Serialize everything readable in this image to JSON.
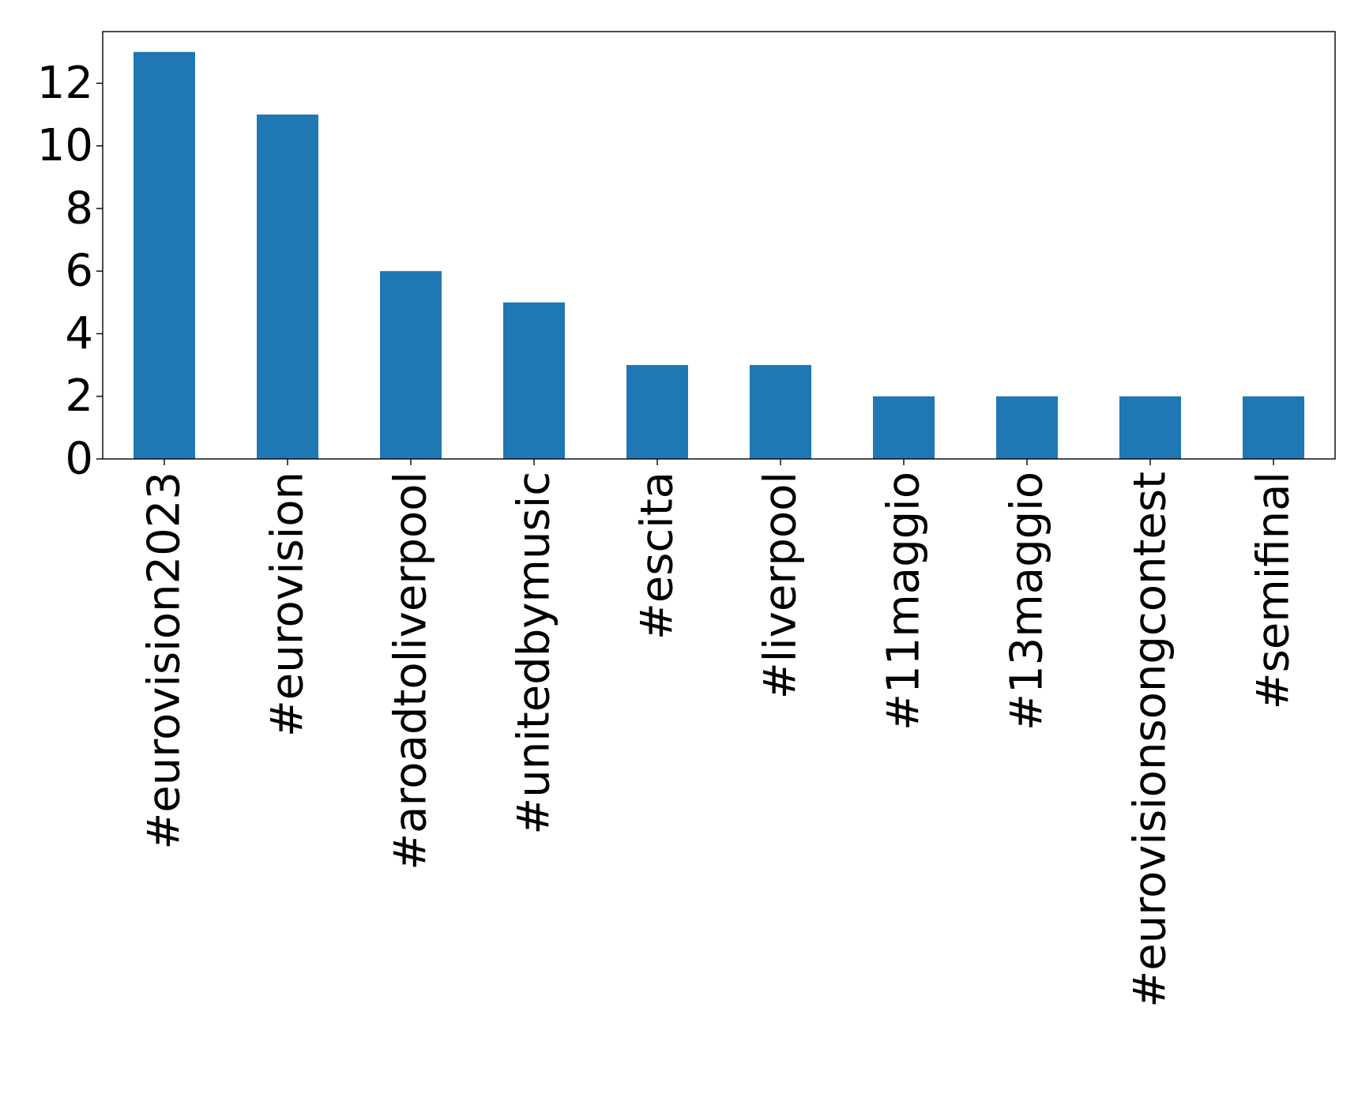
{
  "chart_data": {
    "type": "bar",
    "categories": [
      "#eurovision2023",
      "#eurovision",
      "#aroadtoliverpool",
      "#unitedbymusic",
      "#escita",
      "#liverpool",
      "#11maggio",
      "#13maggio",
      "#eurovisionsongcontest",
      "#semifinal"
    ],
    "values": [
      13,
      11,
      6,
      5,
      3,
      3,
      2,
      2,
      2,
      2
    ],
    "yticks": [
      "0",
      "2",
      "4",
      "6",
      "8",
      "10",
      "12"
    ],
    "ylim": [
      0,
      13.65
    ],
    "title": "",
    "xlabel": "",
    "ylabel": "",
    "grid": false,
    "legend": "none",
    "bar_color": "#1f77b4"
  }
}
